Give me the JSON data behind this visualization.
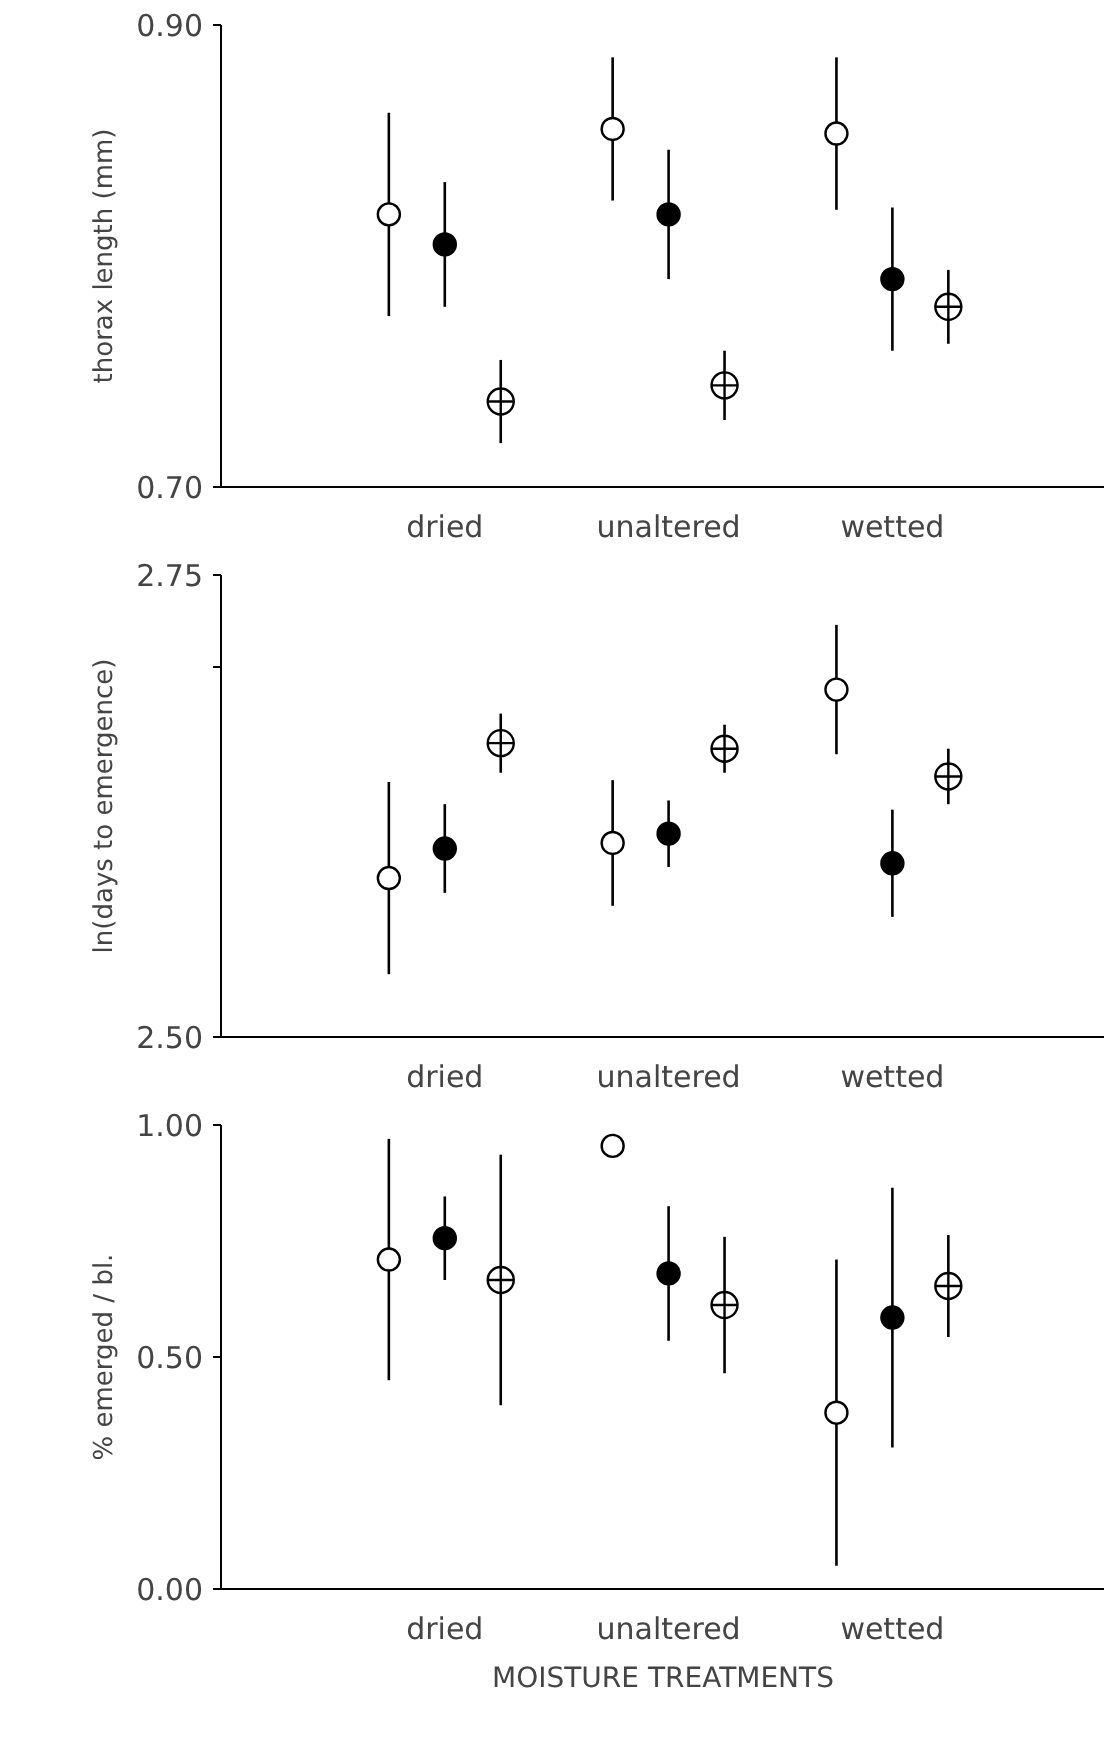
{
  "chart_data": [
    {
      "type": "scatter",
      "ylabel": "thorax length (mm)",
      "categories": [
        "dried",
        "unaltered",
        "wetted"
      ],
      "ylim": [
        0.7,
        0.9
      ],
      "yticks": [
        {
          "value": 0.7,
          "label": "0.70"
        },
        {
          "value": 0.9,
          "label": "0.90"
        }
      ],
      "series": [
        {
          "color": "#ffffff",
          "marker": "circle",
          "values": [
            0.818,
            0.855,
            0.853
          ],
          "errors": [
            0.044,
            0.031,
            0.033
          ]
        },
        {
          "color": "#000000",
          "marker": "circle",
          "values": [
            0.805,
            0.818,
            0.79
          ],
          "errors": [
            0.027,
            0.028,
            0.031
          ]
        },
        {
          "color": "#ffffff",
          "marker": "circle",
          "values": [
            0.737,
            0.744,
            0.778
          ],
          "errors": [
            0.018,
            0.015,
            0.016
          ]
        }
      ]
    },
    {
      "type": "scatter",
      "ylabel": "ln(days to emergence)",
      "categories": [
        "dried",
        "unaltered",
        "wetted"
      ],
      "ylim": [
        2.5,
        2.75
      ],
      "yticks": [
        {
          "value": 2.5,
          "label": "2.50"
        },
        {
          "value": 2.7,
          "label": null
        },
        {
          "value": 2.75,
          "label": "2.75"
        }
      ],
      "series": [
        {
          "color": "#ffffff",
          "marker": "circle",
          "values": [
            2.586,
            2.605,
            2.688
          ],
          "errors": [
            0.052,
            0.034,
            0.035
          ]
        },
        {
          "color": "#000000",
          "marker": "circle",
          "values": [
            2.602,
            2.61,
            2.594
          ],
          "errors": [
            0.024,
            0.018,
            0.029
          ]
        },
        {
          "color": "#ffffff",
          "marker": "circle",
          "values": [
            2.659,
            2.656,
            2.641
          ],
          "errors": [
            0.016,
            0.013,
            0.015
          ]
        }
      ]
    },
    {
      "type": "scatter",
      "ylabel": "% emerged / bl.",
      "xlabel": "MOISTURE TREATMENTS",
      "categories": [
        "dried",
        "unaltered",
        "wetted"
      ],
      "ylim": [
        0.0,
        1.0
      ],
      "yticks": [
        {
          "value": 0.0,
          "label": "0.00"
        },
        {
          "value": 0.5,
          "label": "0.50"
        },
        {
          "value": 1.0,
          "label": "1.00"
        }
      ],
      "series": [
        {
          "color": "#ffffff",
          "marker": "circle",
          "values": [
            0.71,
            0.955,
            0.38
          ],
          "errors": [
            0.26,
            null,
            0.33
          ]
        },
        {
          "color": "#000000",
          "marker": "circle",
          "values": [
            0.756,
            0.68,
            0.585
          ],
          "errors": [
            0.09,
            0.145,
            0.28
          ]
        },
        {
          "color": "#ffffff",
          "marker": "circle",
          "values": [
            0.666,
            0.612,
            0.653
          ],
          "errors": [
            0.27,
            0.147,
            0.11
          ]
        }
      ]
    }
  ]
}
